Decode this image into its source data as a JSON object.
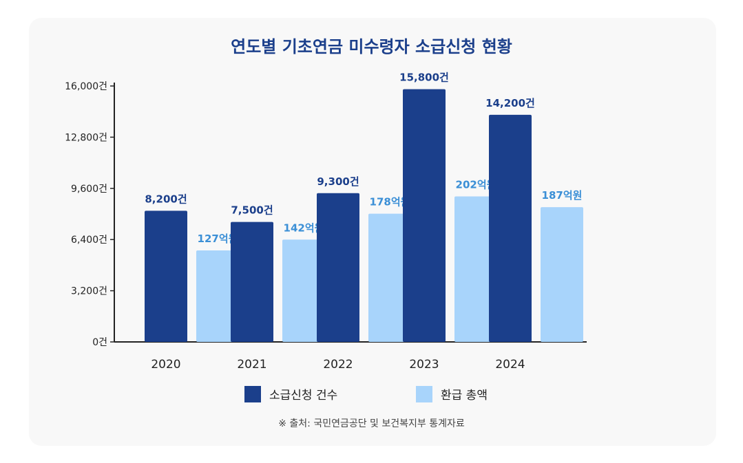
{
  "chart_data": {
    "type": "bar",
    "title": "연도별 기초연금 미수령자 소급신청 현황",
    "categories": [
      "2020",
      "2021",
      "2022",
      "2023",
      "2024"
    ],
    "series": [
      {
        "name": "소급신청 건수",
        "color": "#1b3f8b",
        "values": [
          8200,
          7500,
          9300,
          15800,
          14200
        ],
        "labels": [
          "8,200건",
          "7,500건",
          "9,300건",
          "15,800건",
          "14,200건"
        ]
      },
      {
        "name": "환급 총액",
        "color": "#a8d4fb",
        "values": [
          127,
          142,
          178,
          202,
          187
        ],
        "labels": [
          "127억원",
          "142억원",
          "178억원",
          "202억원",
          "187억원"
        ]
      }
    ],
    "yticks": [
      "0건",
      "3,200건",
      "6,400건",
      "9,600건",
      "12,800건",
      "16,000건"
    ],
    "ylim": [
      0,
      16000
    ],
    "label_colors": {
      "primary": "#1b3f8b",
      "secondary": "#3b8fd6"
    },
    "grid": false,
    "legend_position": "bottom"
  },
  "source": "※ 출처: 국민연금공단 및 보건복지부 통계자료"
}
